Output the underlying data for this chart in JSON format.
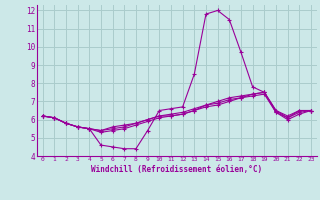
{
  "title": "",
  "xlabel": "Windchill (Refroidissement éolien,°C)",
  "ylabel": "",
  "bg_color": "#cce8e8",
  "grid_color": "#aacccc",
  "line_color": "#990099",
  "marker": "+",
  "xlim": [
    -0.5,
    23.5
  ],
  "ylim": [
    4,
    12.3
  ],
  "yticks": [
    4,
    5,
    6,
    7,
    8,
    9,
    10,
    11,
    12
  ],
  "xticks": [
    0,
    1,
    2,
    3,
    4,
    5,
    6,
    7,
    8,
    9,
    10,
    11,
    12,
    13,
    14,
    15,
    16,
    17,
    18,
    19,
    20,
    21,
    22,
    23
  ],
  "series": [
    [
      6.2,
      6.1,
      5.8,
      5.6,
      5.5,
      4.6,
      4.5,
      4.4,
      4.4,
      5.4,
      6.5,
      6.6,
      6.7,
      8.5,
      11.8,
      12.0,
      11.5,
      9.7,
      7.8,
      7.5,
      6.5,
      6.1,
      6.5,
      6.5
    ],
    [
      6.2,
      6.1,
      5.8,
      5.6,
      5.5,
      5.4,
      5.6,
      5.7,
      5.8,
      6.0,
      6.2,
      6.2,
      6.3,
      6.5,
      6.7,
      6.8,
      7.0,
      7.2,
      7.4,
      7.5,
      6.5,
      6.2,
      6.5,
      6.5
    ],
    [
      6.2,
      6.1,
      5.8,
      5.6,
      5.5,
      5.4,
      5.5,
      5.6,
      5.8,
      6.0,
      6.2,
      6.3,
      6.4,
      6.6,
      6.8,
      6.9,
      7.1,
      7.2,
      7.3,
      7.4,
      6.4,
      6.1,
      6.4,
      6.5
    ],
    [
      6.2,
      6.1,
      5.8,
      5.6,
      5.5,
      5.3,
      5.4,
      5.5,
      5.7,
      5.9,
      6.1,
      6.2,
      6.3,
      6.5,
      6.8,
      7.0,
      7.2,
      7.3,
      7.4,
      7.5,
      6.4,
      6.0,
      6.3,
      6.5
    ]
  ]
}
